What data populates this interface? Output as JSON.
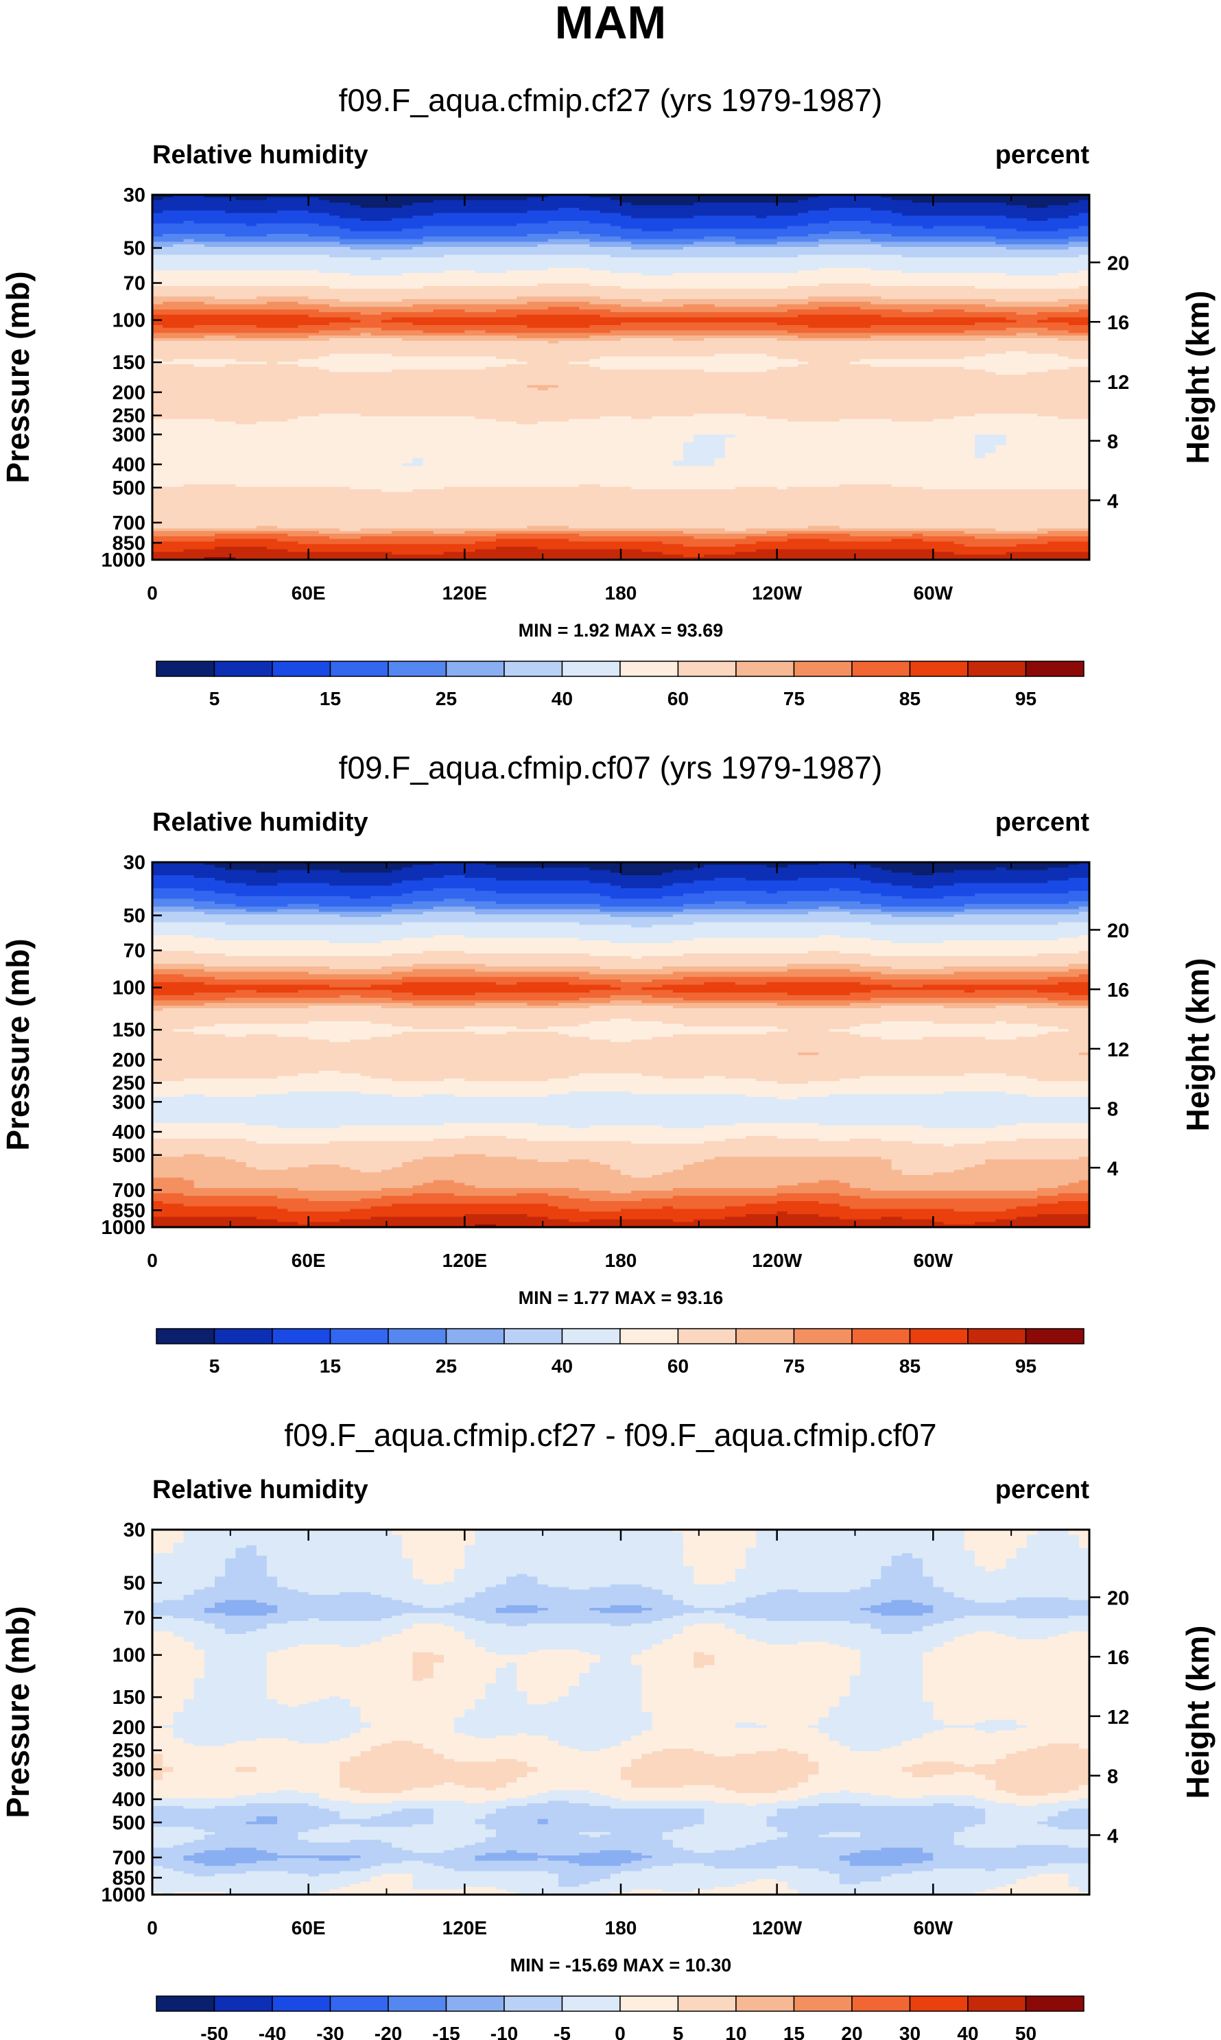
{
  "figure": {
    "title": "MAM"
  },
  "colors": {
    "rh": [
      "#0a1f6e",
      "#0d2fb5",
      "#1a4ae6",
      "#3367f0",
      "#5587f0",
      "#8aaef2",
      "#b9d1f6",
      "#dce9f8",
      "#fdeee0",
      "#fbd7bf",
      "#f7b894",
      "#f4905f",
      "#f16632",
      "#e9400e",
      "#c62908",
      "#8b0a08"
    ],
    "diff": [
      "#0a1f6e",
      "#0d2fb5",
      "#1a4ae6",
      "#3367f0",
      "#5587f0",
      "#8aaef2",
      "#b9d1f6",
      "#dce9f8",
      "#fdeee0",
      "#fbd7bf",
      "#f7b894",
      "#f4905f",
      "#f16632",
      "#e9400e",
      "#c62908",
      "#8b0a08"
    ]
  },
  "chart_data": [
    {
      "type": "heatmap",
      "title": "f09.F_aqua.cfmip.cf27 (yrs 1979-1987)",
      "left_label": "Relative humidity",
      "right_label": "percent",
      "ylabel": "Pressure (mb)",
      "ylabel_right": "Height (km)",
      "xlabel": "",
      "x_ticks": [
        "0",
        "60E",
        "120E",
        "180",
        "120W",
        "60W"
      ],
      "x_tick_values": [
        0,
        60,
        120,
        180,
        240,
        300
      ],
      "xlim": [
        0,
        360
      ],
      "y_ticks": [
        "30",
        "50",
        "70",
        "100",
        "150",
        "200",
        "250",
        "300",
        "400",
        "500",
        "700",
        "850",
        "1000"
      ],
      "y_tick_values": [
        30,
        50,
        70,
        100,
        150,
        200,
        250,
        300,
        400,
        500,
        700,
        850,
        1000
      ],
      "ylim": [
        1000,
        30
      ],
      "height_ticks": [
        "20",
        "16",
        "12",
        "8",
        "4"
      ],
      "height_tick_values": [
        20,
        16,
        12,
        8,
        4
      ],
      "minmax_text": "MIN =   1.92  MAX =  93.69",
      "min": 1.92,
      "max": 93.69,
      "colorbar_labels": [
        "5",
        "15",
        "25",
        "40",
        "60",
        "75",
        "85",
        "95"
      ],
      "colorbar_levels": [
        5,
        10,
        15,
        20,
        25,
        30,
        40,
        50,
        60,
        70,
        75,
        80,
        85,
        90,
        95
      ],
      "profile": [
        [
          30,
          3
        ],
        [
          45,
          20
        ],
        [
          55,
          42
        ],
        [
          70,
          57
        ],
        [
          85,
          74
        ],
        [
          100,
          88
        ],
        [
          112,
          80
        ],
        [
          125,
          66
        ],
        [
          150,
          58
        ],
        [
          190,
          68
        ],
        [
          240,
          63
        ],
        [
          300,
          52
        ],
        [
          400,
          52
        ],
        [
          480,
          57
        ],
        [
          520,
          63
        ],
        [
          600,
          63
        ],
        [
          680,
          63
        ],
        [
          730,
          68
        ],
        [
          780,
          78
        ],
        [
          830,
          84
        ],
        [
          890,
          88
        ],
        [
          950,
          92
        ],
        [
          1000,
          93
        ]
      ]
    },
    {
      "type": "heatmap",
      "title": "f09.F_aqua.cfmip.cf07 (yrs 1979-1987)",
      "left_label": "Relative humidity",
      "right_label": "percent",
      "ylabel": "Pressure (mb)",
      "ylabel_right": "Height (km)",
      "xlabel": "",
      "x_ticks": [
        "0",
        "60E",
        "120E",
        "180",
        "120W",
        "60W"
      ],
      "x_tick_values": [
        0,
        60,
        120,
        180,
        240,
        300
      ],
      "xlim": [
        0,
        360
      ],
      "y_ticks": [
        "30",
        "50",
        "70",
        "100",
        "150",
        "200",
        "250",
        "300",
        "400",
        "500",
        "700",
        "850",
        "1000"
      ],
      "y_tick_values": [
        30,
        50,
        70,
        100,
        150,
        200,
        250,
        300,
        400,
        500,
        700,
        850,
        1000
      ],
      "ylim": [
        1000,
        30
      ],
      "height_ticks": [
        "20",
        "16",
        "12",
        "8",
        "4"
      ],
      "height_tick_values": [
        20,
        16,
        12,
        8,
        4
      ],
      "minmax_text": "MIN =   1.77  MAX =  93.16",
      "min": 1.77,
      "max": 93.16,
      "colorbar_labels": [
        "5",
        "15",
        "25",
        "40",
        "60",
        "75",
        "85",
        "95"
      ],
      "colorbar_levels": [
        5,
        10,
        15,
        20,
        25,
        30,
        40,
        50,
        60,
        70,
        75,
        80,
        85,
        90,
        95
      ],
      "profile": [
        [
          30,
          3
        ],
        [
          45,
          20
        ],
        [
          55,
          42
        ],
        [
          70,
          57
        ],
        [
          85,
          74
        ],
        [
          100,
          88
        ],
        [
          112,
          80
        ],
        [
          125,
          66
        ],
        [
          150,
          58
        ],
        [
          190,
          68
        ],
        [
          240,
          60
        ],
        [
          300,
          45
        ],
        [
          360,
          47
        ],
        [
          400,
          55
        ],
        [
          450,
          62
        ],
        [
          520,
          70
        ],
        [
          600,
          72
        ],
        [
          680,
          74
        ],
        [
          720,
          78
        ],
        [
          800,
          84
        ],
        [
          880,
          88
        ],
        [
          950,
          92
        ],
        [
          1000,
          93
        ]
      ]
    },
    {
      "type": "heatmap",
      "title": "f09.F_aqua.cfmip.cf27 - f09.F_aqua.cfmip.cf07",
      "left_label": "Relative humidity",
      "right_label": "percent",
      "ylabel": "Pressure (mb)",
      "ylabel_right": "Height (km)",
      "xlabel": "",
      "x_ticks": [
        "0",
        "60E",
        "120E",
        "180",
        "120W",
        "60W"
      ],
      "x_tick_values": [
        0,
        60,
        120,
        180,
        240,
        300
      ],
      "xlim": [
        0,
        360
      ],
      "y_ticks": [
        "30",
        "50",
        "70",
        "100",
        "150",
        "200",
        "250",
        "300",
        "400",
        "500",
        "700",
        "850",
        "1000"
      ],
      "y_tick_values": [
        30,
        50,
        70,
        100,
        150,
        200,
        250,
        300,
        400,
        500,
        700,
        850,
        1000
      ],
      "ylim": [
        1000,
        30
      ],
      "height_ticks": [
        "20",
        "16",
        "12",
        "8",
        "4"
      ],
      "height_tick_values": [
        20,
        16,
        12,
        8,
        4
      ],
      "minmax_text": "MIN = -15.69  MAX =  10.30",
      "min": -15.69,
      "max": 10.3,
      "colorbar_labels": [
        "-50",
        "-40",
        "-30",
        "-20",
        "-15",
        "-10",
        "-5",
        "0",
        "5",
        "10",
        "15",
        "20",
        "30",
        "40",
        "50"
      ],
      "colorbar_levels": [
        -50,
        -40,
        -30,
        -20,
        -15,
        -10,
        -5,
        0,
        5,
        10,
        15,
        20,
        30,
        40,
        50
      ],
      "profile": [
        [
          30,
          -1
        ],
        [
          50,
          -3
        ],
        [
          65,
          -9
        ],
        [
          75,
          -3
        ],
        [
          100,
          2
        ],
        [
          150,
          1
        ],
        [
          200,
          -1
        ],
        [
          260,
          4
        ],
        [
          300,
          6
        ],
        [
          360,
          4
        ],
        [
          400,
          0
        ],
        [
          440,
          -6
        ],
        [
          500,
          -7
        ],
        [
          560,
          -4
        ],
        [
          620,
          -6
        ],
        [
          700,
          -10
        ],
        [
          760,
          -7
        ],
        [
          820,
          -3
        ],
        [
          900,
          -2
        ],
        [
          950,
          -1
        ],
        [
          1000,
          1
        ]
      ]
    }
  ]
}
